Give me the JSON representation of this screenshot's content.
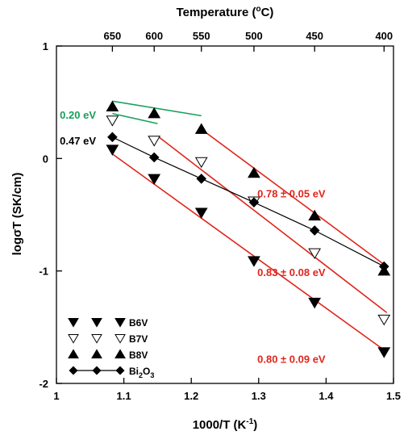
{
  "chart_data": {
    "type": "scatter",
    "xlabel_main": "1000/T (K",
    "xlabel_sup": "-1",
    "xlabel_end": ")",
    "ylabel": "logσT (SK/cm)",
    "top_label_main": "Temperature (",
    "top_label_sup": "o",
    "top_label_end": "C)",
    "xlim": [
      1.0,
      1.5
    ],
    "ylim": [
      -2,
      1
    ],
    "x_ticks": [
      1,
      1.1,
      1.2,
      1.3,
      1.4,
      1.5
    ],
    "x_tick_labels": [
      "1",
      "1.1",
      "1.2",
      "1.3",
      "1.4",
      "1.5"
    ],
    "y_ticks": [
      -2,
      -1,
      0,
      1
    ],
    "y_tick_labels": [
      "-2",
      "-1",
      "0",
      "1"
    ],
    "top_ticks": [
      {
        "label": "650",
        "x": 1.083
      },
      {
        "label": "600",
        "x": 1.145
      },
      {
        "label": "550",
        "x": 1.215
      },
      {
        "label": "500",
        "x": 1.293
      },
      {
        "label": "450",
        "x": 1.383
      },
      {
        "label": "400",
        "x": 1.486
      }
    ],
    "series": [
      {
        "name": "B6V",
        "marker": "down-filled",
        "points": [
          [
            1.083,
            0.08
          ],
          [
            1.145,
            -0.18
          ],
          [
            1.215,
            -0.48
          ],
          [
            1.293,
            -0.91
          ],
          [
            1.383,
            -1.28
          ],
          [
            1.486,
            -1.72
          ]
        ]
      },
      {
        "name": "B7V",
        "marker": "down-open",
        "points": [
          [
            1.083,
            0.34
          ],
          [
            1.145,
            0.16
          ],
          [
            1.215,
            -0.03
          ],
          [
            1.293,
            -0.38
          ],
          [
            1.383,
            -0.84
          ],
          [
            1.486,
            -1.43
          ]
        ]
      },
      {
        "name": "B8V",
        "marker": "up-filled",
        "points": [
          [
            1.083,
            0.46
          ],
          [
            1.145,
            0.4
          ],
          [
            1.215,
            0.26
          ],
          [
            1.293,
            -0.13
          ],
          [
            1.383,
            -0.51
          ],
          [
            1.486,
            -1.0
          ]
        ]
      },
      {
        "name": "Bi",
        "name_sub": "2",
        "name_mid": "O",
        "name_sub2": "3",
        "marker": "diamond-line",
        "points": [
          [
            1.083,
            0.19
          ],
          [
            1.145,
            0.01
          ],
          [
            1.215,
            -0.18
          ],
          [
            1.293,
            -0.39
          ],
          [
            1.383,
            -0.64
          ],
          [
            1.486,
            -0.96
          ]
        ]
      }
    ],
    "fit_lines": [
      {
        "color": "#19a05a",
        "from": [
          1.083,
          0.51
        ],
        "to": [
          1.215,
          0.38
        ]
      },
      {
        "color": "#19a05a",
        "from": [
          1.083,
          0.4
        ],
        "to": [
          1.15,
          0.31
        ]
      },
      {
        "color": "#e0261c",
        "from": [
          1.215,
          0.26
        ],
        "to": [
          1.49,
          -0.96
        ]
      },
      {
        "color": "#e0261c",
        "from": [
          1.15,
          0.2
        ],
        "to": [
          1.49,
          -1.37
        ]
      },
      {
        "color": "#e0261c",
        "from": [
          1.083,
          0.04
        ],
        "to": [
          1.49,
          -1.72
        ]
      }
    ],
    "annotations": [
      {
        "text": "0.20 eV",
        "color": "#19a05a",
        "x": 1.005,
        "y": 0.39
      },
      {
        "text": "0.47 eV",
        "color": "#000000",
        "x": 1.005,
        "y": 0.16
      },
      {
        "text": "0.78 ± 0.05 eV",
        "color": "#e0261c",
        "x": 1.298,
        "y": -0.31
      },
      {
        "text": "0.83 ± 0.08 eV",
        "color": "#e0261c",
        "x": 1.298,
        "y": -1.01
      },
      {
        "text": "0.80 ± 0.09 eV",
        "color": "#e0261c",
        "x": 1.298,
        "y": -1.78
      }
    ],
    "legend_position": "bottom-left",
    "grid": false
  }
}
